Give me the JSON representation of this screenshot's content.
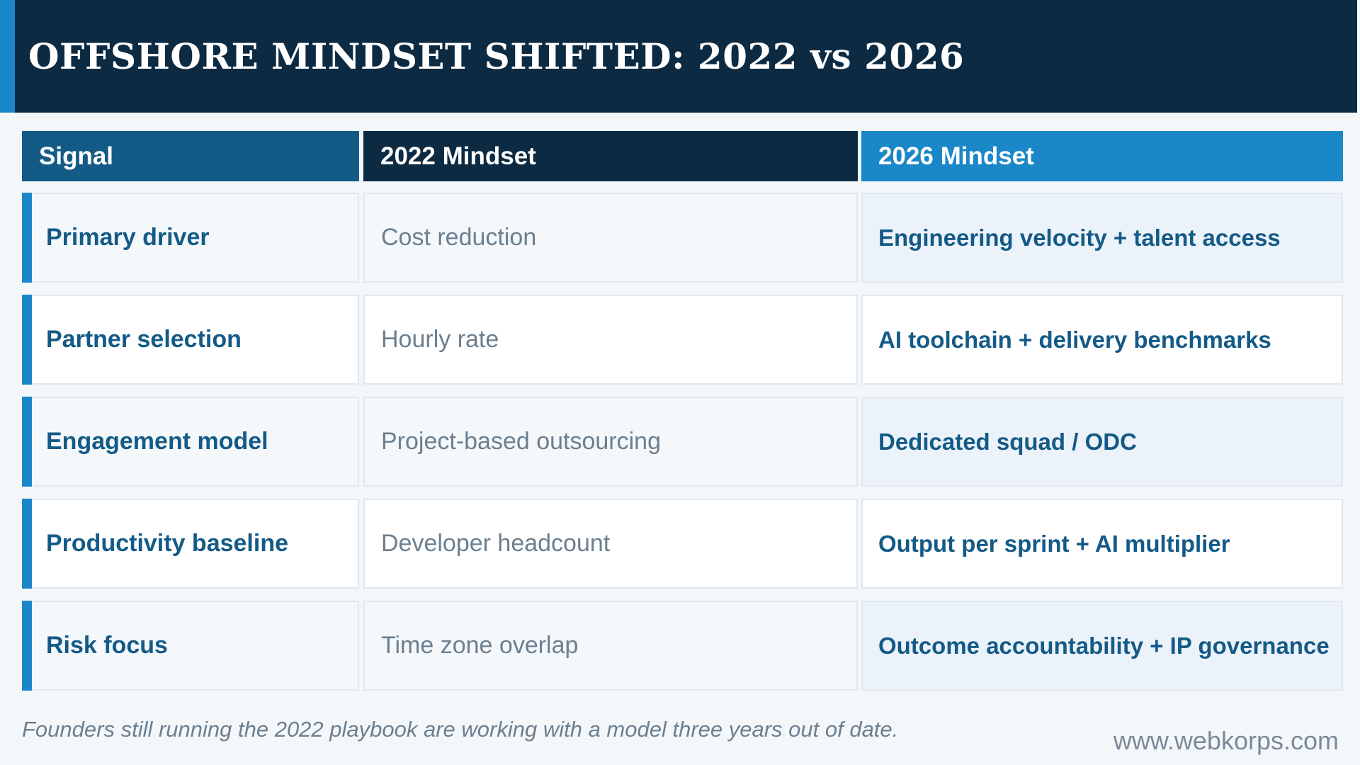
{
  "title": "OFFSHORE MINDSET SHIFTED: 2022 vs 2026",
  "table": {
    "headers": [
      "Signal",
      "2022 Mindset",
      "2026 Mindset"
    ],
    "rows": [
      {
        "signal": "Primary driver",
        "mindset_2022": "Cost reduction",
        "mindset_2026": "Engineering velocity + talent access"
      },
      {
        "signal": "Partner selection",
        "mindset_2022": "Hourly rate",
        "mindset_2026": "AI toolchain + delivery benchmarks"
      },
      {
        "signal": "Engagement model",
        "mindset_2022": "Project-based outsourcing",
        "mindset_2026": "Dedicated squad / ODC"
      },
      {
        "signal": "Productivity baseline",
        "mindset_2022": "Developer headcount",
        "mindset_2026": "Output per sprint + AI multiplier"
      },
      {
        "signal": "Risk focus",
        "mindset_2022": "Time zone overlap",
        "mindset_2026": "Outcome accountability + IP governance"
      }
    ]
  },
  "footnote": "Founders still running the 2022 playbook are working with a model three years out of date.",
  "website": "www.webkorps.com",
  "colors": {
    "navy": "#0c2a42",
    "accent_blue": "#1a87c8",
    "mid_blue": "#145a87",
    "muted_text": "#6b7f8f"
  }
}
